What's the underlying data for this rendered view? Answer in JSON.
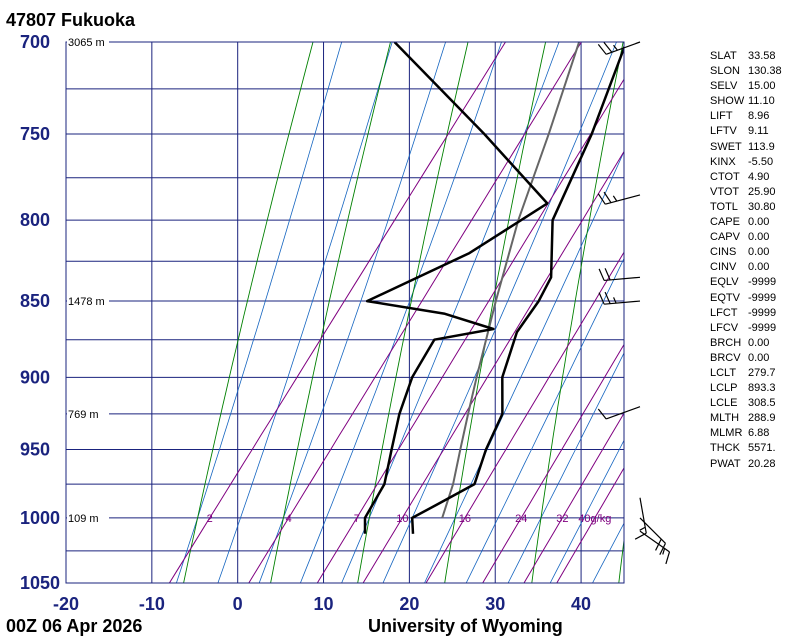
{
  "header": {
    "station": "47807  Fukuoka"
  },
  "footer": {
    "time": "00Z 06 Apr 2026",
    "source": "University of Wyoming"
  },
  "chart_data": {
    "type": "line",
    "xlim": [
      -20,
      45
    ],
    "pressure_levels": [
      700,
      750,
      800,
      850,
      900,
      950,
      1000,
      1050
    ],
    "x_ticks": [
      -20,
      -10,
      0,
      10,
      20,
      30,
      40
    ],
    "height_labels": [
      {
        "p": 700,
        "label": "3065 m"
      },
      {
        "p": 850,
        "label": "1478 m"
      },
      {
        "p": 925,
        "label": "769 m"
      },
      {
        "p": 1000,
        "label": "109 m"
      }
    ],
    "mixing_ratio_labels": [
      {
        "w": 2,
        "label": "2"
      },
      {
        "w": 4,
        "label": "4"
      },
      {
        "w": 7,
        "label": "7"
      },
      {
        "w": 10,
        "label": "10"
      },
      {
        "w": 16,
        "label": "16"
      },
      {
        "w": 24,
        "label": "24"
      },
      {
        "w": 32,
        "label": "32"
      },
      {
        "w": 40,
        "label": "40g/kg"
      }
    ],
    "series": [
      {
        "points": [
          [
            1012,
            16.4
          ],
          [
            1000,
            15.0
          ],
          [
            990,
            16.8
          ],
          [
            975,
            19.5
          ],
          [
            950,
            18.0
          ],
          [
            925,
            17.0
          ],
          [
            900,
            14.0
          ],
          [
            870,
            12.0
          ],
          [
            850,
            12.0
          ],
          [
            835,
            11.5
          ],
          [
            800,
            7.0
          ],
          [
            750,
            4.5
          ],
          [
            700,
            1.0
          ]
        ]
      },
      {
        "points": [
          [
            1012,
            10.8
          ],
          [
            1000,
            9.5
          ],
          [
            975,
            9.0
          ],
          [
            950,
            7.0
          ],
          [
            925,
            5.0
          ],
          [
            900,
            3.5
          ],
          [
            875,
            3.0
          ],
          [
            868,
            9.0
          ],
          [
            858,
            2.0
          ],
          [
            850,
            -8.0
          ],
          [
            820,
            0.0
          ],
          [
            790,
            5.0
          ],
          [
            750,
            -8.0
          ],
          [
            700,
            -26.0
          ]
        ]
      },
      {
        "points": [
          [
            1000,
            18.5
          ],
          [
            975,
            17.0
          ],
          [
            950,
            15.0
          ],
          [
            925,
            13.0
          ],
          [
            900,
            11.0
          ],
          [
            850,
            7.0
          ],
          [
            800,
            3.0
          ],
          [
            750,
            -0.5
          ],
          [
            700,
            -4.5
          ]
        ]
      }
    ],
    "wind_barbs": [
      {
        "p": 700,
        "dir": 250,
        "spd": 25
      },
      {
        "p": 785,
        "dir": 255,
        "spd": 25
      },
      {
        "p": 835,
        "dir": 265,
        "spd": 20
      },
      {
        "p": 850,
        "dir": 265,
        "spd": 25
      },
      {
        "p": 920,
        "dir": 250,
        "spd": 10
      },
      {
        "p": 985,
        "dir": 170,
        "spd": 15
      },
      {
        "p": 1000,
        "dir": 135,
        "spd": 20
      },
      {
        "p": 1010,
        "dir": 125,
        "spd": 15
      }
    ],
    "colors": {
      "grid": "#1a237e",
      "isotherm": "#1a237e",
      "dry_adiabat": "#008000",
      "moist_adiabat": "#1565c0",
      "mixing_ratio": "#800080",
      "temperature": "#000000",
      "dewpoint": "#000000",
      "parcel": "#666666"
    }
  },
  "indices": [
    {
      "name": "SLAT",
      "value": "33.58"
    },
    {
      "name": "SLON",
      "value": "130.38"
    },
    {
      "name": "SELV",
      "value": "15.00"
    },
    {
      "name": "SHOW",
      "value": "11.10"
    },
    {
      "name": "LIFT",
      "value": "8.96"
    },
    {
      "name": "LFTV",
      "value": "9.11"
    },
    {
      "name": "SWET",
      "value": "113.9"
    },
    {
      "name": "KINX",
      "value": "-5.50"
    },
    {
      "name": "CTOT",
      "value": "4.90"
    },
    {
      "name": "VTOT",
      "value": "25.90"
    },
    {
      "name": "TOTL",
      "value": "30.80"
    },
    {
      "name": "CAPE",
      "value": "0.00"
    },
    {
      "name": "CAPV",
      "value": "0.00"
    },
    {
      "name": "CINS",
      "value": "0.00"
    },
    {
      "name": "CINV",
      "value": "0.00"
    },
    {
      "name": "EQLV",
      "value": "-9999"
    },
    {
      "name": "EQTV",
      "value": "-9999"
    },
    {
      "name": "LFCT",
      "value": "-9999"
    },
    {
      "name": "LFCV",
      "value": "-9999"
    },
    {
      "name": "BRCH",
      "value": "0.00"
    },
    {
      "name": "BRCV",
      "value": "0.00"
    },
    {
      "name": "LCLT",
      "value": "279.7"
    },
    {
      "name": "LCLP",
      "value": "893.3"
    },
    {
      "name": "LCLE",
      "value": "308.5"
    },
    {
      "name": "MLTH",
      "value": "288.9"
    },
    {
      "name": "MLMR",
      "value": "6.88"
    },
    {
      "name": "THCK",
      "value": "5571."
    },
    {
      "name": "PWAT",
      "value": "20.28"
    }
  ]
}
